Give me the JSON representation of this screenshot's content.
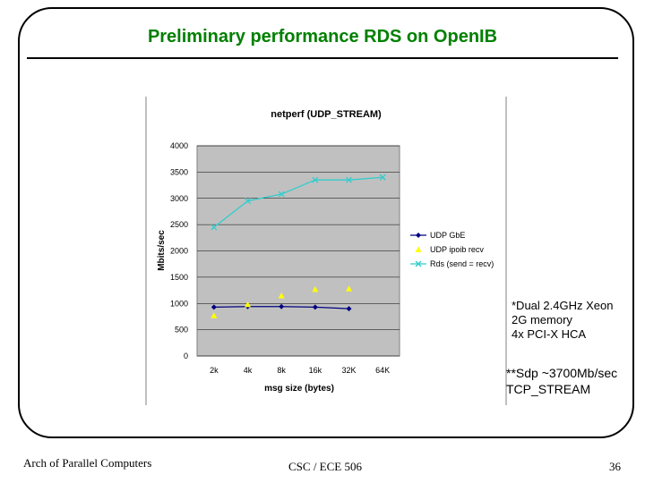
{
  "slide": {
    "title": "Preliminary performance RDS on OpenIB",
    "notes": [
      "*Dual 2.4GHz Xeon",
      "2G memory",
      "4x PCI-X HCA"
    ],
    "notes2": [
      "**Sdp ~3700Mb/sec",
      "TCP_STREAM"
    ],
    "footer_left": "Arch of Parallel Computers",
    "footer_center": "CSC / ECE 506",
    "page_number": "36"
  },
  "chart_data": {
    "type": "line",
    "title": "netperf (UDP_STREAM)",
    "xlabel": "msg size (bytes)",
    "ylabel": "Mbits/sec",
    "categories": [
      "2k",
      "4k",
      "8k",
      "16k",
      "32K",
      "64K"
    ],
    "ylim": [
      0,
      4000
    ],
    "yticks": [
      0,
      500,
      1000,
      1500,
      2000,
      2500,
      3000,
      3500,
      4000
    ],
    "grid": true,
    "legend": "right",
    "series": [
      {
        "name": "UDP GbE",
        "color": "#000080",
        "marker": "diamond",
        "values": [
          930,
          940,
          940,
          930,
          900,
          null
        ]
      },
      {
        "name": "UDP ipoib recv",
        "color": "#ffff00",
        "marker": "triangle",
        "values": [
          770,
          980,
          1150,
          1270,
          1280,
          null
        ]
      },
      {
        "name": "Rds (send = recv)",
        "color": "#33cccc",
        "marker": "x",
        "values": [
          2450,
          2950,
          3080,
          3350,
          3350,
          3400
        ]
      }
    ]
  }
}
